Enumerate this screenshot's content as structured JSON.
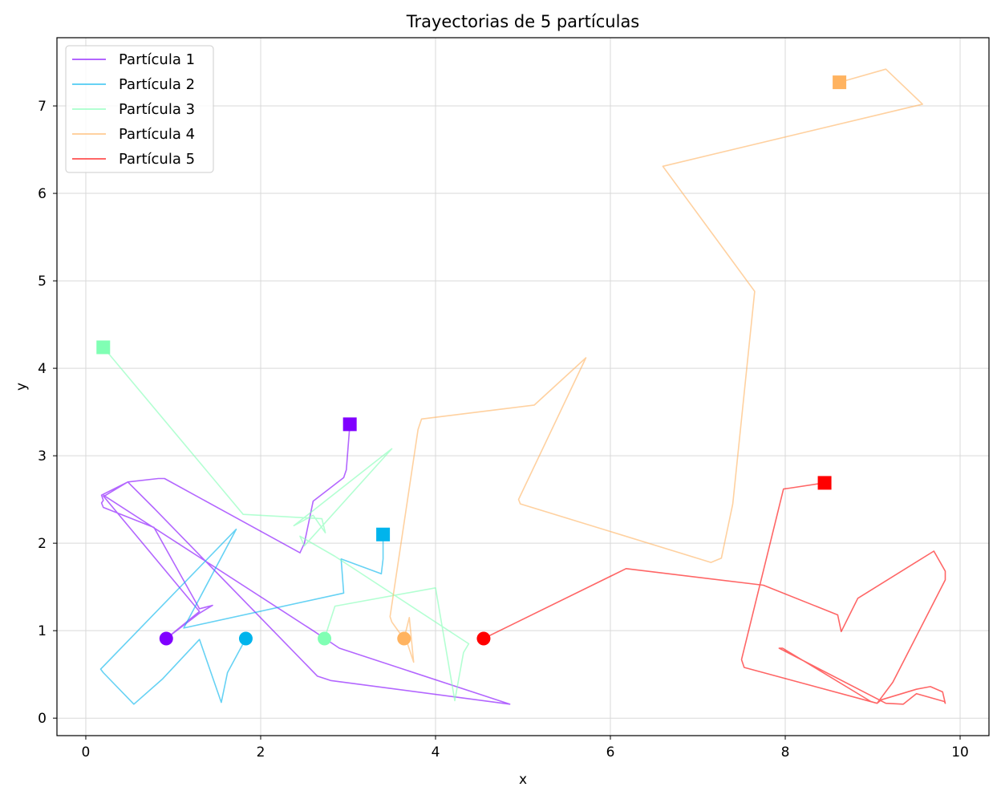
{
  "chart_data": {
    "type": "line",
    "title": "Trayectorias de 5 partículas",
    "xlabel": "x",
    "ylabel": "y",
    "xlim": [
      -0.33,
      10.33
    ],
    "ylim": [
      -0.2,
      7.78
    ],
    "xticks": [
      0,
      2,
      4,
      6,
      8,
      10
    ],
    "yticks": [
      0,
      1,
      2,
      3,
      4,
      5,
      6,
      7
    ],
    "grid": true,
    "legend_position": "top-left",
    "series": [
      {
        "name": "Partícula 1",
        "color": "#8000ff",
        "x": [
          0.92,
          1.3,
          1.45,
          1.3,
          0.78,
          0.2,
          0.18,
          0.2,
          0.18,
          0.48,
          0.83,
          0.9,
          2.45,
          2.5,
          2.6,
          2.95,
          2.98,
          3.02,
          3.02
        ],
        "y": [
          0.91,
          1.2,
          1.29,
          1.25,
          2.18,
          2.41,
          2.46,
          2.49,
          2.55,
          2.7,
          2.74,
          2.74,
          1.89,
          2.0,
          2.48,
          2.75,
          2.84,
          3.2,
          3.36
        ],
        "path_x": [
          0.92,
          1.3,
          1.45,
          1.3,
          0.78,
          0.2,
          0.18,
          0.2,
          0.18,
          0.48,
          0.83,
          0.9,
          2.45,
          2.5,
          2.6,
          2.95,
          2.98,
          3.02
        ],
        "path_y": [
          0.91,
          1.2,
          1.29,
          1.25,
          2.18,
          2.41,
          2.46,
          2.49,
          2.55,
          2.7,
          2.74,
          2.74,
          1.89,
          2.0,
          2.48,
          2.75,
          2.84,
          3.36
        ],
        "extra_x": [
          0.92,
          1.3,
          0.2,
          0.23,
          0.48,
          0.78,
          2.65,
          2.8,
          4.85,
          2.9,
          2.6,
          0.2
        ],
        "extra_y": [
          0.91,
          1.22,
          2.54,
          2.55,
          2.7,
          2.4,
          0.48,
          0.43,
          0.16,
          0.8,
          1.0,
          2.55
        ]
      },
      {
        "name": "Partícula 2",
        "color": "#00b4ec",
        "x": [
          1.83,
          1.62,
          1.55,
          1.3,
          0.88,
          0.55,
          0.2,
          0.17,
          1.72,
          1.12,
          2.95,
          2.92,
          3.38,
          3.4,
          3.4
        ],
        "y": [
          0.91,
          0.52,
          0.18,
          0.9,
          0.45,
          0.16,
          0.52,
          0.56,
          2.16,
          1.03,
          1.43,
          1.82,
          1.65,
          1.82,
          2.1
        ]
      },
      {
        "name": "Partícula 3",
        "color": "#80ffb4",
        "x": [
          2.73,
          2.85,
          4.0,
          4.0,
          4.22,
          4.32,
          4.38,
          2.85,
          2.45,
          2.5,
          3.5,
          2.38,
          2.6,
          2.74,
          2.7,
          1.8,
          0.2
        ],
        "y": [
          0.91,
          1.28,
          1.49,
          1.49,
          0.2,
          0.75,
          0.85,
          1.85,
          2.08,
          1.97,
          3.08,
          2.2,
          2.32,
          2.12,
          2.28,
          2.33,
          4.24
        ]
      },
      {
        "name": "Partícula 4",
        "color": "#ffb360",
        "x": [
          3.64,
          3.7,
          3.75,
          3.68,
          3.55,
          3.5,
          3.48,
          3.8,
          3.84,
          5.13,
          5.72,
          4.95,
          4.97,
          7.15,
          7.27,
          7.4,
          7.65,
          6.6,
          9.57,
          9.15,
          8.62
        ],
        "y": [
          0.91,
          1.15,
          0.64,
          0.85,
          1.03,
          1.1,
          1.16,
          3.3,
          3.42,
          3.58,
          4.12,
          2.5,
          2.45,
          1.78,
          1.83,
          2.45,
          4.88,
          6.31,
          7.02,
          7.42,
          7.27
        ]
      },
      {
        "name": "Partícula 5",
        "color": "#ff0000",
        "x": [
          4.55,
          6.18,
          7.75,
          8.6,
          8.64,
          8.83,
          9.7,
          9.83,
          9.83,
          9.23,
          9.05,
          9.1,
          9.5,
          9.66,
          9.8,
          9.83,
          9.82,
          9.5,
          9.35,
          9.15,
          7.93,
          7.97,
          8.98,
          9.05,
          7.53,
          7.5,
          7.98,
          8.05,
          8.45
        ],
        "y": [
          0.91,
          1.71,
          1.52,
          1.18,
          0.99,
          1.37,
          1.91,
          1.68,
          1.58,
          0.41,
          0.17,
          0.21,
          0.33,
          0.36,
          0.3,
          0.17,
          0.19,
          0.28,
          0.16,
          0.17,
          0.8,
          0.8,
          0.19,
          0.17,
          0.58,
          0.67,
          2.62,
          2.63,
          2.69
        ]
      }
    ]
  }
}
